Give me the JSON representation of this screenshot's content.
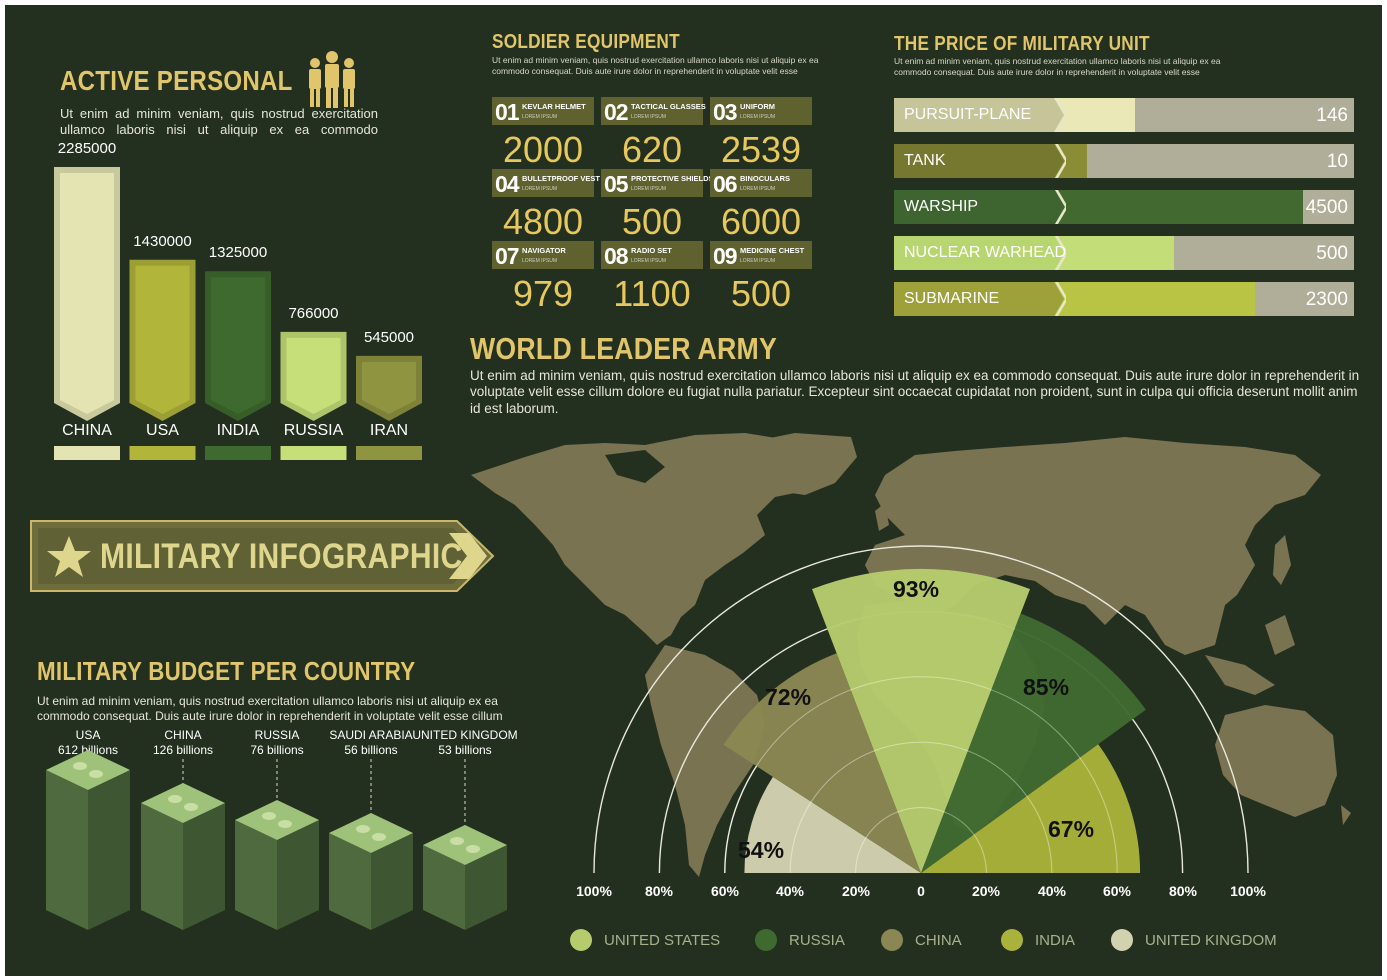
{
  "colors": {
    "background": "#24301f",
    "title": "#e0c56a",
    "value_yellow": "#e7c85e",
    "c_usa": "#b6cb6c",
    "c_russia": "#3f6a2f",
    "c_china": "#8a8754",
    "c_india": "#a9b23a",
    "c_uk": "#d2d1b0"
  },
  "active_personal": {
    "title": "ACTIVE PERSONAL",
    "text": "Ut enim ad minim veniam, quis nostrud exercitation ullamco laboris nisi ut aliquip ex ea commodo",
    "icon": "soldiers-icon"
  },
  "soldier_equipment": {
    "title": "SOLDIER EQUIPMENT",
    "text": "Ut enim ad minim veniam, quis nostrud exercitation ullamco laboris nisi ut aliquip ex ea commodo consequat. Duis aute irure dolor in reprehenderit in voluptate velit esse",
    "items": [
      {
        "num": "01",
        "name": "KEVLAR HELMET",
        "sub": "LOREM IPSUM",
        "value": "2000"
      },
      {
        "num": "02",
        "name": "TACTICAL GLASSES",
        "sub": "LOREM IPSUM",
        "value": "620"
      },
      {
        "num": "03",
        "name": "UNIFORM",
        "sub": "LOREM IPSUM",
        "value": "2539"
      },
      {
        "num": "04",
        "name": "BULLETPROOF VEST",
        "sub": "LOREM IPSUM",
        "value": "4800"
      },
      {
        "num": "05",
        "name": "PROTECTIVE SHIELDS",
        "sub": "LOREM IPSUM",
        "value": "500"
      },
      {
        "num": "06",
        "name": "BINOCULARS",
        "sub": "LOREM IPSUM",
        "value": "6000"
      },
      {
        "num": "07",
        "name": "NAVIGATOR",
        "sub": "LOREM IPSUM",
        "value": "979"
      },
      {
        "num": "08",
        "name": "RADIO SET",
        "sub": "LOREM IPSUM",
        "value": "1100"
      },
      {
        "num": "09",
        "name": "MEDICINE CHEST",
        "sub": "LOREM IPSUM",
        "value": "500"
      }
    ]
  },
  "price_unit": {
    "title": "THE PRICE OF MILITARY UNIT",
    "text": "Ut enim ad minim veniam, quis nostrud exercitation ullamco laboris nisi ut aliquip ex ea commodo consequat. Duis aute irure dolor in reprehenderit in voluptate velit esse"
  },
  "world_leader": {
    "title": "WORLD LEADER ARMY",
    "text": "Ut enim ad minim veniam, quis nostrud exercitation ullamco laboris nisi ut aliquip ex ea commodo consequat. Duis aute irure dolor in reprehenderit in voluptate velit esse cillum dolore eu fugiat nulla pariatur. Excepteur sint occaecat cupidatat non proident, sunt in culpa qui officia deserunt mollit anim id est laborum."
  },
  "banner": {
    "title": "MILITARY INFOGRAPHIC",
    "icon": "star-icon"
  },
  "budget": {
    "title": "MILITARY BUDGET PER COUNTRY",
    "text": "Ut enim ad minim veniam, quis nostrud exercitation ullamco laboris nisi ut aliquip ex ea commodo consequat. Duis aute irure dolor in reprehenderit in voluptate velit esse cillum"
  },
  "chart_data": [
    {
      "type": "bar",
      "title": "ACTIVE PERSONAL",
      "categories": [
        "CHINA",
        "USA",
        "INDIA",
        "RUSSIA",
        "IRAN"
      ],
      "values": [
        2285000,
        1430000,
        1325000,
        766000,
        545000
      ],
      "colors": [
        "#e4e4b3",
        "#b1b63b",
        "#3f6a2f",
        "#c6df78",
        "#8f9441"
      ],
      "legend": "bottom"
    },
    {
      "type": "bar",
      "title": "THE PRICE OF MILITARY UNIT",
      "orientation": "horizontal",
      "categories": [
        "PURSUIT-PLANE",
        "TANK",
        "WARSHIP",
        "NUCLEAR WARHEAD",
        "SUBMARINE"
      ],
      "values": [
        146,
        10,
        4500,
        500,
        2300
      ],
      "fill_fraction": [
        0.27,
        0.11,
        0.83,
        0.4,
        0.67
      ],
      "label_colors": [
        "#c5c599",
        "#76782f",
        "#3e6430",
        "#b8d670",
        "#9ea13a"
      ],
      "fill_colors": [
        "#e9e8b6",
        "#8a8d35",
        "#42692f",
        "#c3de78",
        "#b9c444"
      ]
    },
    {
      "type": "bar",
      "title": "MILITARY BUDGET PER COUNTRY",
      "categories": [
        "USA",
        "CHINA",
        "RUSSIA",
        "SAUDI ARABIA",
        "UNITED KINGDOM"
      ],
      "values": [
        612,
        126,
        76,
        56,
        53
      ],
      "value_labels": [
        "612 billions",
        "126 billions",
        "76 billions",
        "56 billions",
        "53 billions"
      ],
      "icon": "money-stack-icon"
    },
    {
      "type": "polar-area",
      "title": "WORLD LEADER ARMY",
      "series": [
        {
          "name": "UNITED KINGDOM",
          "value": 54,
          "label": "54%",
          "color": "#d2d1b0"
        },
        {
          "name": "CHINA",
          "value": 72,
          "label": "72%",
          "color": "#8a8754"
        },
        {
          "name": "UNITED STATES",
          "value": 93,
          "label": "93%",
          "color": "#b6cb6c"
        },
        {
          "name": "RUSSIA",
          "value": 85,
          "label": "85%",
          "color": "#3f6a2f"
        },
        {
          "name": "INDIA",
          "value": 67,
          "label": "67%",
          "color": "#a9b23a"
        }
      ],
      "axis_ticks": [
        "100%",
        "80%",
        "60%",
        "40%",
        "20%",
        "0",
        "20%",
        "40%",
        "60%",
        "80%",
        "100%"
      ],
      "legend": [
        {
          "name": "UNITED STATES",
          "color": "#b6cb6c"
        },
        {
          "name": "RUSSIA",
          "color": "#3f6a2f"
        },
        {
          "name": "CHINA",
          "color": "#8a8754"
        },
        {
          "name": "INDIA",
          "color": "#a9b23a"
        },
        {
          "name": "UNITED KINGDOM",
          "color": "#d2d1b0"
        }
      ],
      "legend_position": "bottom"
    }
  ]
}
